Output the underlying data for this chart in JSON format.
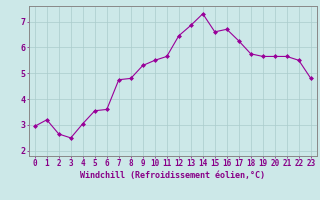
{
  "x": [
    0,
    1,
    2,
    3,
    4,
    5,
    6,
    7,
    8,
    9,
    10,
    11,
    12,
    13,
    14,
    15,
    16,
    17,
    18,
    19,
    20,
    21,
    22,
    23
  ],
  "y": [
    2.95,
    3.2,
    2.65,
    2.5,
    3.05,
    3.55,
    3.6,
    4.75,
    4.8,
    5.3,
    5.5,
    5.65,
    6.45,
    6.85,
    7.3,
    6.6,
    6.7,
    6.25,
    5.75,
    5.65,
    5.65,
    5.65,
    5.5,
    4.8
  ],
  "line_color": "#990099",
  "marker": "D",
  "marker_size": 2.0,
  "bg_color": "#cce8e8",
  "grid_color": "#aacccc",
  "xlabel": "Windchill (Refroidissement éolien,°C)",
  "xlim": [
    -0.5,
    23.5
  ],
  "ylim": [
    1.8,
    7.6
  ],
  "yticks": [
    2,
    3,
    4,
    5,
    6,
    7
  ],
  "xticks": [
    0,
    1,
    2,
    3,
    4,
    5,
    6,
    7,
    8,
    9,
    10,
    11,
    12,
    13,
    14,
    15,
    16,
    17,
    18,
    19,
    20,
    21,
    22,
    23
  ],
  "tick_color": "#880088",
  "label_color": "#880088",
  "spine_color": "#888888",
  "tick_fontsize": 5.5,
  "xlabel_fontsize": 6.0
}
